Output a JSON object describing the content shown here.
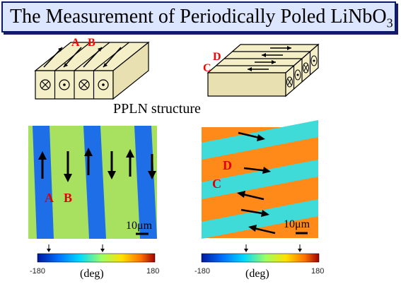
{
  "title": {
    "main": "The Measurement of Periodically Poled LiNbO",
    "sub": "3"
  },
  "schematic": {
    "left_labels": [
      "A",
      "B"
    ],
    "right_labels": [
      "D",
      "C"
    ],
    "caption": "PPLN structure"
  },
  "images": [
    {
      "labels": [
        "A",
        "B"
      ],
      "scale_bar": "10μm",
      "colorbar": {
        "min": "-180",
        "max": "180",
        "unit": "(deg)"
      },
      "colors": {
        "green": "#a8e060",
        "blue": "#1e6ee8"
      }
    },
    {
      "labels": [
        "D",
        "C"
      ],
      "scale_bar": "10μm",
      "colorbar": {
        "min": "-180",
        "max": "180",
        "unit": "(deg)"
      },
      "colors": {
        "orange": "#ff8a1a",
        "cyan": "#3fdbd9"
      }
    }
  ]
}
